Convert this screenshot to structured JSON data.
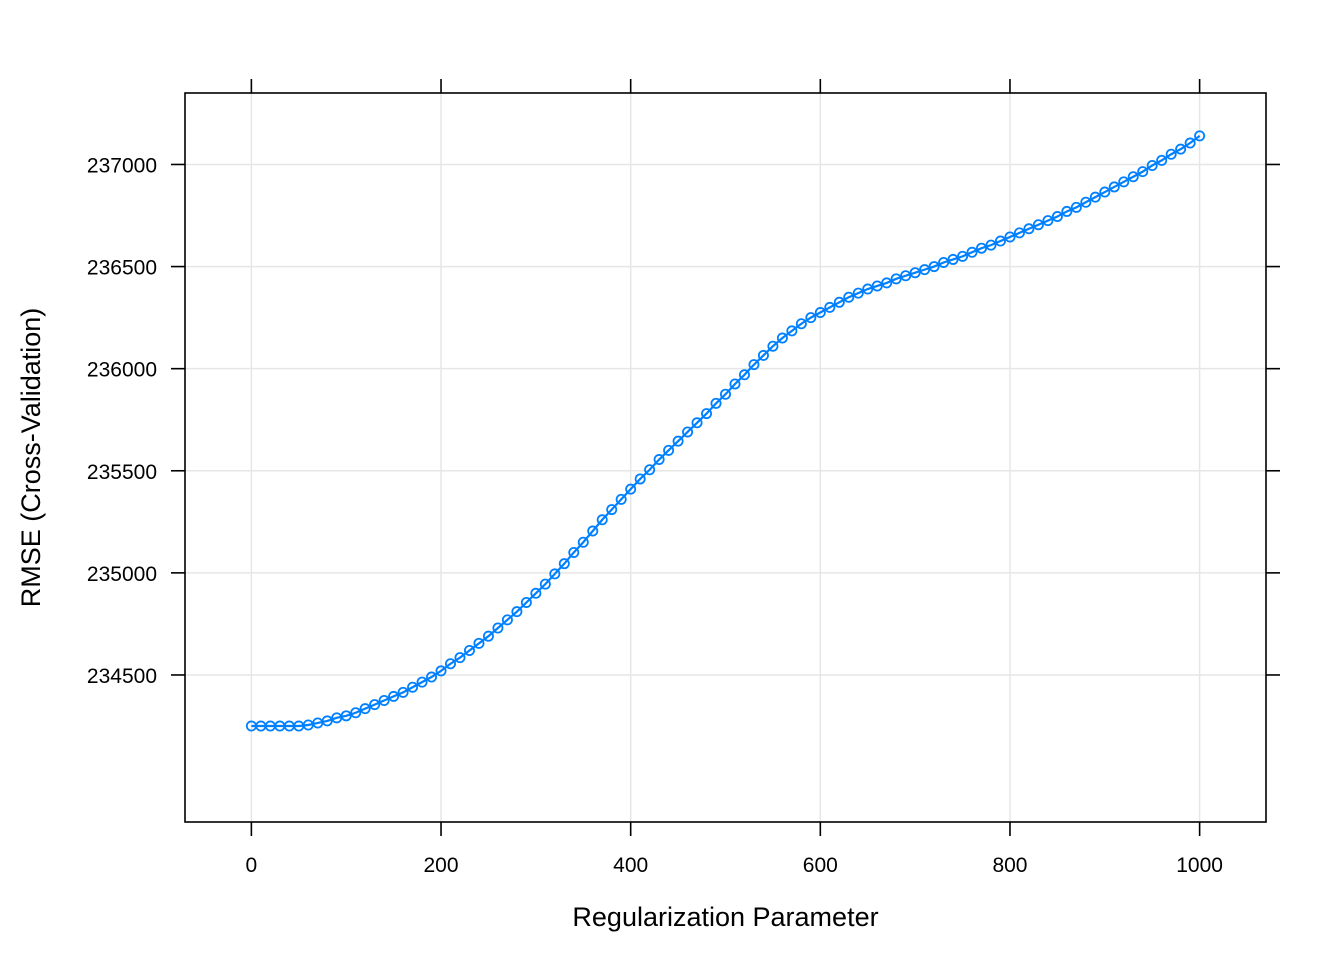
{
  "chart_data": {
    "type": "line",
    "xlabel": "Regularization Parameter",
    "ylabel": "RMSE (Cross-Validation)",
    "xlim": [
      -70,
      1070
    ],
    "ylim": [
      233780,
      237350
    ],
    "x_ticks": [
      0,
      200,
      400,
      600,
      800,
      1000
    ],
    "y_ticks": [
      234500,
      235000,
      235500,
      236000,
      236500,
      237000
    ],
    "x_tick_labels": [
      "0",
      "200",
      "400",
      "600",
      "800",
      "1000"
    ],
    "y_tick_labels": [
      "234500",
      "235000",
      "235500",
      "236000",
      "236500",
      "237000"
    ],
    "grid": true,
    "marker": "open-circle",
    "colors": {
      "series": "#0080ff",
      "grid": "#e6e6e6",
      "frame": "#000000"
    },
    "series": [
      {
        "x": [
          0,
          10,
          20,
          30,
          40,
          50,
          60,
          70,
          80,
          90,
          100,
          110,
          120,
          130,
          140,
          150,
          160,
          170,
          180,
          190,
          200,
          210,
          220,
          230,
          240,
          250,
          260,
          270,
          280,
          290,
          300,
          310,
          320,
          330,
          340,
          350,
          360,
          370,
          380,
          390,
          400,
          410,
          420,
          430,
          440,
          450,
          460,
          470,
          480,
          490,
          500,
          510,
          520,
          530,
          540,
          550,
          560,
          570,
          580,
          590,
          600,
          610,
          620,
          630,
          640,
          650,
          660,
          670,
          680,
          690,
          700,
          710,
          720,
          730,
          740,
          750,
          760,
          770,
          780,
          790,
          800,
          810,
          820,
          830,
          840,
          850,
          860,
          870,
          880,
          890,
          900,
          910,
          920,
          930,
          940,
          950,
          960,
          970,
          980,
          990,
          1000
        ],
        "y": [
          234250,
          234250,
          234250,
          234250,
          234250,
          234250,
          234255,
          234265,
          234275,
          234290,
          234300,
          234315,
          234335,
          234355,
          234375,
          234395,
          234415,
          234440,
          234465,
          234490,
          234520,
          234555,
          234585,
          234620,
          234655,
          234690,
          234730,
          234770,
          234810,
          234855,
          234900,
          234945,
          234995,
          235045,
          235100,
          235150,
          235205,
          235260,
          235310,
          235360,
          235410,
          235460,
          235505,
          235555,
          235600,
          235645,
          235690,
          235735,
          235780,
          235830,
          235875,
          235925,
          235970,
          236020,
          236065,
          236110,
          236150,
          236185,
          236220,
          236250,
          236275,
          236300,
          236325,
          236350,
          236370,
          236390,
          236405,
          236420,
          236440,
          236455,
          236470,
          236485,
          236500,
          236520,
          236535,
          236550,
          236570,
          236590,
          236605,
          236625,
          236645,
          236665,
          236685,
          236705,
          236725,
          236745,
          236770,
          236790,
          236815,
          236840,
          236865,
          236890,
          236915,
          236940,
          236965,
          236995,
          237020,
          237050,
          237075,
          237105,
          237140
        ]
      }
    ]
  }
}
